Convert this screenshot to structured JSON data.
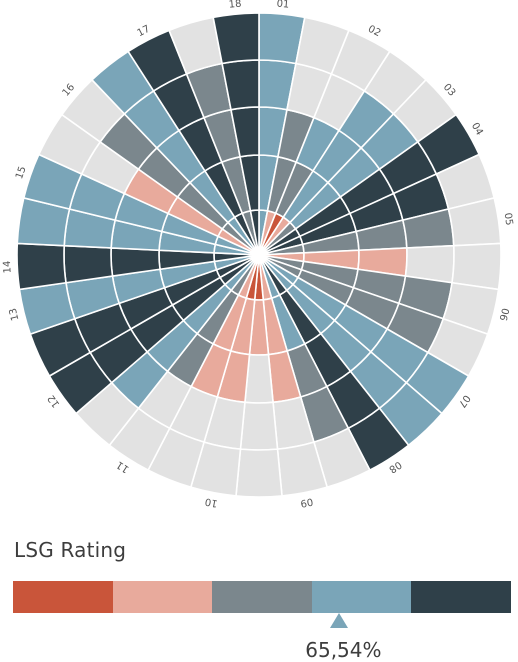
{
  "chart_data": {
    "type": "radial-bar",
    "rings_total": 5,
    "sectors": [
      {
        "label": "01",
        "segments": [
          3,
          3,
          3,
          3,
          3
        ]
      },
      {
        "label": "",
        "segments": [
          1,
          2,
          2
        ]
      },
      {
        "label": "02",
        "segments": [
          0,
          2,
          3
        ]
      },
      {
        "label": "",
        "segments": [
          1,
          3,
          3,
          3
        ]
      },
      {
        "label": "03",
        "segments": [
          2,
          3,
          3,
          3
        ]
      },
      {
        "label": "04",
        "segments": [
          4,
          4,
          4,
          4,
          4
        ]
      },
      {
        "label": "",
        "segments": [
          4,
          4,
          4,
          4
        ]
      },
      {
        "label": "05",
        "segments": [
          2,
          2,
          2,
          2
        ]
      },
      {
        "label": "",
        "segments": [
          1,
          1,
          1
        ]
      },
      {
        "label": "06",
        "segments": [
          2,
          2,
          2,
          2
        ]
      },
      {
        "label": "",
        "segments": [
          2,
          2,
          2,
          2
        ]
      },
      {
        "label": "07",
        "segments": [
          3,
          3,
          3,
          3,
          3
        ]
      },
      {
        "label": "",
        "segments": [
          3,
          3,
          3,
          3,
          3
        ]
      },
      {
        "label": "08",
        "segments": [
          4,
          4,
          4,
          4,
          4
        ]
      },
      {
        "label": "",
        "segments": [
          3,
          3,
          2,
          2
        ]
      },
      {
        "label": "09",
        "segments": [
          1,
          1,
          1
        ]
      },
      {
        "label": "",
        "segments": [
          0,
          1
        ]
      },
      {
        "label": "10",
        "segments": [
          0,
          1,
          1
        ]
      },
      {
        "label": "",
        "segments": [
          1,
          1,
          1
        ]
      },
      {
        "label": "11",
        "segments": [
          2,
          2,
          2
        ]
      },
      {
        "label": "",
        "segments": [
          3,
          3,
          3,
          3
        ]
      },
      {
        "label": "12",
        "segments": [
          4,
          4,
          4,
          4,
          4
        ]
      },
      {
        "label": "",
        "segments": [
          4,
          4,
          4,
          4,
          4
        ]
      },
      {
        "label": "13",
        "segments": [
          3,
          3,
          3,
          3,
          3
        ]
      },
      {
        "label": "14",
        "segments": [
          4,
          4,
          4,
          4,
          4
        ]
      },
      {
        "label": "",
        "segments": [
          3,
          3,
          3,
          3,
          3
        ]
      },
      {
        "label": "15",
        "segments": [
          3,
          3,
          3,
          3,
          3
        ]
      },
      {
        "label": "",
        "segments": [
          1,
          1,
          1
        ]
      },
      {
        "label": "16",
        "segments": [
          2,
          2,
          2,
          2
        ]
      },
      {
        "label": "",
        "segments": [
          3,
          3,
          3,
          3,
          3
        ]
      },
      {
        "label": "17",
        "segments": [
          4,
          4,
          4,
          4,
          4
        ]
      },
      {
        "label": "",
        "segments": [
          2,
          2,
          2,
          2
        ]
      },
      {
        "label": "18",
        "segments": [
          4,
          4,
          4,
          4,
          4
        ]
      }
    ],
    "legend": {
      "title": "LSG Rating",
      "levels": [
        "#c9553a",
        "#e8aa9c",
        "#7b878d",
        "#7aa5b8",
        "#2f4049"
      ],
      "marker_value": 0.6554,
      "value_label": "65,54%"
    }
  }
}
